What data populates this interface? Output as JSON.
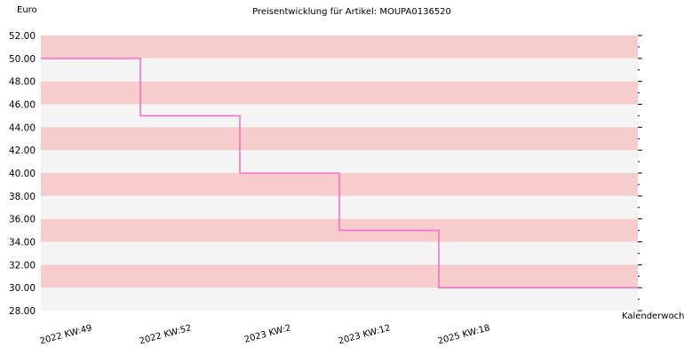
{
  "chart_data": {
    "type": "line",
    "subtype": "step",
    "title": "Preisentwicklung für Artikel: MOUPA0136520",
    "ylabel": "Euro",
    "xlabel": "Kalenderwoche",
    "ylim": [
      28,
      52
    ],
    "yticks": [
      "28.00",
      "30.00",
      "32.00",
      "34.00",
      "36.00",
      "38.00",
      "40.00",
      "42.00",
      "44.00",
      "46.00",
      "48.00",
      "50.00",
      "52.00"
    ],
    "categories": [
      "2022 KW:49",
      "2022 KW:52",
      "2023 KW:2",
      "2023 KW:12",
      "2025 KW:18"
    ],
    "series": [
      {
        "values": [
          50,
          45,
          40,
          35,
          30
        ],
        "color": "#ff6ec7"
      }
    ],
    "band_colors": [
      "#f7cccc",
      "#f4f4f4"
    ],
    "grid": true,
    "legend": "none"
  }
}
